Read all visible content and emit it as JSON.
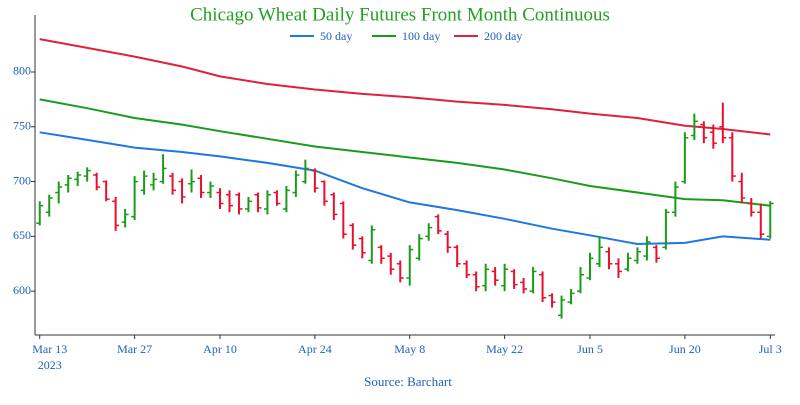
{
  "chart_data": {
    "type": "ohlc",
    "title": "Chicago Wheat Daily Futures Front Month Continuous",
    "source": "Source: Barchart",
    "x": [
      "2023-03-13",
      "2023-03-14",
      "2023-03-15",
      "2023-03-16",
      "2023-03-17",
      "2023-03-20",
      "2023-03-21",
      "2023-03-22",
      "2023-03-23",
      "2023-03-24",
      "2023-03-27",
      "2023-03-28",
      "2023-03-29",
      "2023-03-30",
      "2023-03-31",
      "2023-04-03",
      "2023-04-04",
      "2023-04-05",
      "2023-04-06",
      "2023-04-10",
      "2023-04-11",
      "2023-04-12",
      "2023-04-13",
      "2023-04-14",
      "2023-04-17",
      "2023-04-18",
      "2023-04-19",
      "2023-04-20",
      "2023-04-21",
      "2023-04-24",
      "2023-04-25",
      "2023-04-26",
      "2023-04-27",
      "2023-04-28",
      "2023-05-01",
      "2023-05-02",
      "2023-05-03",
      "2023-05-04",
      "2023-05-05",
      "2023-05-08",
      "2023-05-09",
      "2023-05-10",
      "2023-05-11",
      "2023-05-12",
      "2023-05-15",
      "2023-05-16",
      "2023-05-17",
      "2023-05-18",
      "2023-05-19",
      "2023-05-22",
      "2023-05-23",
      "2023-05-24",
      "2023-05-25",
      "2023-05-26",
      "2023-05-30",
      "2023-05-31",
      "2023-06-01",
      "2023-06-02",
      "2023-06-05",
      "2023-06-06",
      "2023-06-07",
      "2023-06-08",
      "2023-06-09",
      "2023-06-12",
      "2023-06-13",
      "2023-06-14",
      "2023-06-15",
      "2023-06-16",
      "2023-06-20",
      "2023-06-21",
      "2023-06-22",
      "2023-06-23",
      "2023-06-26",
      "2023-06-27",
      "2023-06-28",
      "2023-06-29",
      "2023-06-30",
      "2023-07-03"
    ],
    "open": [
      662,
      672,
      690,
      697,
      702,
      705,
      706,
      700,
      682,
      663,
      668,
      692,
      697,
      700,
      705,
      700,
      698,
      703,
      690,
      690,
      688,
      688,
      675,
      688,
      675,
      690,
      675,
      690,
      700,
      710,
      700,
      688,
      680,
      660,
      648,
      628,
      640,
      632,
      625,
      612,
      630,
      650,
      668,
      652,
      640,
      625,
      615,
      605,
      618,
      605,
      618,
      608,
      600,
      615,
      596,
      578,
      590,
      600,
      612,
      625,
      636,
      625,
      620,
      628,
      632,
      640,
      640,
      672,
      700,
      742,
      752,
      745,
      750,
      740,
      700,
      680,
      672,
      650
    ],
    "high": [
      682,
      688,
      700,
      706,
      709,
      713,
      708,
      701,
      686,
      675,
      705,
      710,
      708,
      725,
      708,
      703,
      711,
      706,
      700,
      694,
      692,
      690,
      686,
      690,
      692,
      692,
      696,
      710,
      720,
      712,
      701,
      690,
      682,
      662,
      650,
      660,
      642,
      635,
      628,
      642,
      652,
      662,
      670,
      655,
      642,
      628,
      618,
      625,
      622,
      625,
      620,
      612,
      622,
      618,
      598,
      596,
      602,
      622,
      635,
      650,
      640,
      630,
      635,
      640,
      650,
      642,
      675,
      700,
      745,
      762,
      755,
      752,
      772,
      745,
      708,
      685,
      680,
      682
    ],
    "low": [
      660,
      668,
      680,
      690,
      696,
      700,
      692,
      682,
      655,
      658,
      665,
      688,
      692,
      698,
      688,
      680,
      690,
      685,
      685,
      675,
      672,
      670,
      672,
      672,
      670,
      678,
      672,
      686,
      698,
      690,
      678,
      665,
      648,
      638,
      630,
      625,
      625,
      615,
      608,
      605,
      628,
      646,
      652,
      635,
      622,
      612,
      600,
      600,
      605,
      600,
      602,
      598,
      598,
      590,
      585,
      575,
      588,
      598,
      610,
      622,
      620,
      612,
      618,
      625,
      628,
      626,
      638,
      668,
      698,
      738,
      735,
      730,
      735,
      700,
      680,
      668,
      648,
      648
    ],
    "close": [
      678,
      685,
      695,
      703,
      706,
      710,
      695,
      684,
      660,
      670,
      700,
      705,
      702,
      712,
      692,
      686,
      700,
      690,
      696,
      680,
      678,
      675,
      682,
      676,
      688,
      680,
      692,
      706,
      712,
      694,
      682,
      670,
      652,
      642,
      635,
      656,
      630,
      620,
      612,
      638,
      648,
      658,
      655,
      640,
      625,
      615,
      604,
      620,
      610,
      620,
      606,
      602,
      618,
      594,
      590,
      592,
      598,
      615,
      630,
      640,
      625,
      618,
      630,
      636,
      645,
      630,
      672,
      695,
      740,
      755,
      740,
      735,
      740,
      705,
      685,
      672,
      652,
      680
    ],
    "up_color": "#1a9c1a",
    "down_color": "#e8102c",
    "series": [
      {
        "name": "50 day",
        "color": "#1f77e0",
        "x": [
          "2023-03-13",
          "2023-03-20",
          "2023-03-27",
          "2023-04-03",
          "2023-04-10",
          "2023-04-17",
          "2023-04-24",
          "2023-05-01",
          "2023-05-08",
          "2023-05-15",
          "2023-05-22",
          "2023-05-30",
          "2023-06-05",
          "2023-06-12",
          "2023-06-20",
          "2023-06-26",
          "2023-07-03"
        ],
        "values": [
          745,
          738,
          731,
          727,
          723,
          717,
          710,
          694,
          681,
          674,
          666,
          657,
          651,
          643,
          644,
          650,
          647
        ]
      },
      {
        "name": "100 day",
        "color": "#1a9c1a",
        "x": [
          "2023-03-13",
          "2023-03-20",
          "2023-03-27",
          "2023-04-03",
          "2023-04-10",
          "2023-04-17",
          "2023-04-24",
          "2023-05-01",
          "2023-05-08",
          "2023-05-15",
          "2023-05-22",
          "2023-05-30",
          "2023-06-05",
          "2023-06-12",
          "2023-06-20",
          "2023-06-26",
          "2023-07-03"
        ],
        "values": [
          775,
          767,
          758,
          752,
          746,
          739,
          732,
          727,
          722,
          717,
          711,
          703,
          696,
          690,
          684,
          683,
          678
        ]
      },
      {
        "name": "200 day",
        "color": "#e0203c",
        "x": [
          "2023-03-13",
          "2023-03-20",
          "2023-03-27",
          "2023-04-03",
          "2023-04-10",
          "2023-04-17",
          "2023-04-24",
          "2023-05-01",
          "2023-05-08",
          "2023-05-15",
          "2023-05-22",
          "2023-05-30",
          "2023-06-05",
          "2023-06-12",
          "2023-06-20",
          "2023-06-26",
          "2023-07-03"
        ],
        "values": [
          830,
          822,
          814,
          805,
          796,
          789,
          784,
          780,
          777,
          773,
          770,
          766,
          762,
          758,
          751,
          748,
          743
        ]
      }
    ],
    "ylim": [
      560,
      852
    ],
    "yticks": [
      600,
      650,
      700,
      750,
      800
    ],
    "xticks": [
      {
        "value": "2023-03-13",
        "label": "Mar 13"
      },
      {
        "value": "2023-03-27",
        "label": "Mar 27"
      },
      {
        "value": "2023-04-10",
        "label": "Apr 10"
      },
      {
        "value": "2023-04-24",
        "label": "Apr 24"
      },
      {
        "value": "2023-05-08",
        "label": "May 8"
      },
      {
        "value": "2023-05-22",
        "label": "May 22"
      },
      {
        "value": "2023-06-05",
        "label": "Jun 5"
      },
      {
        "value": "2023-06-20",
        "label": "Jun 20"
      },
      {
        "value": "2023-07-03",
        "label": "Jul 3"
      }
    ],
    "xtick_year": "2023",
    "title_color": "#22a022",
    "text_color": "#1f5fbf"
  }
}
